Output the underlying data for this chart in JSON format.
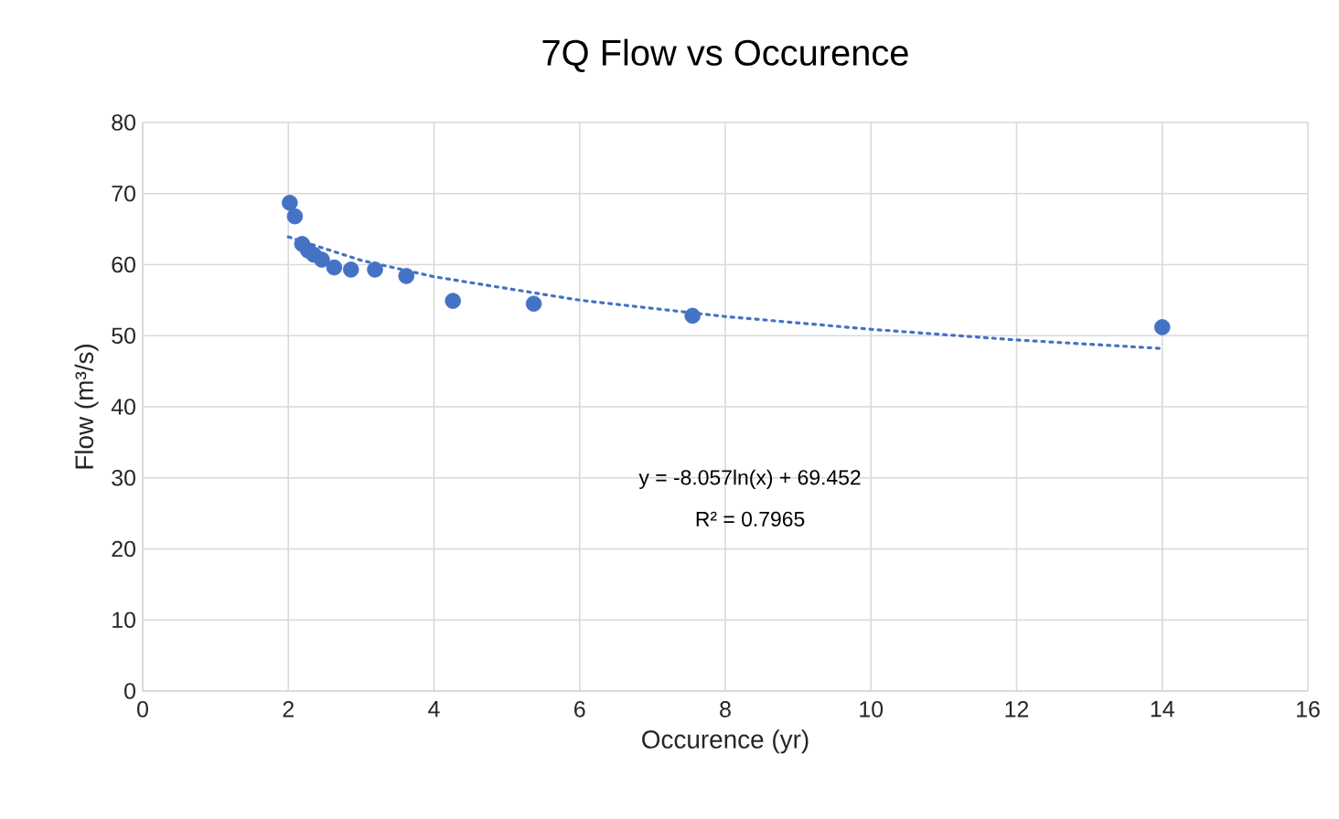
{
  "chart_data": {
    "type": "scatter",
    "title": "7Q Flow vs Occurence",
    "xlabel": "Occurence (yr)",
    "ylabel": "Flow (m³/s)",
    "xlim": [
      0,
      16
    ],
    "ylim": [
      0,
      80
    ],
    "xticks": [
      0,
      2,
      4,
      6,
      8,
      10,
      12,
      14,
      16
    ],
    "yticks": [
      0,
      10,
      20,
      30,
      40,
      50,
      60,
      70,
      80
    ],
    "grid": true,
    "annotations": [
      "y = -8.057ln(x) + 69.452",
      "R² = 0.7965"
    ],
    "series": [
      {
        "color": "#4472c4",
        "marker": "circle",
        "x": [
          2.02,
          2.09,
          2.19,
          2.27,
          2.35,
          2.46,
          2.63,
          2.86,
          3.19,
          3.62,
          4.26,
          5.37,
          7.55,
          14.0
        ],
        "values": [
          68.7,
          66.8,
          62.9,
          62.0,
          61.4,
          60.7,
          59.6,
          59.3,
          59.3,
          58.4,
          54.9,
          54.5,
          52.8,
          51.2
        ]
      },
      {
        "type": "line",
        "color": "#4472c4",
        "marker": "none",
        "line_style": "dotted",
        "x": [
          2,
          3,
          4,
          6,
          8,
          10,
          12,
          14
        ],
        "values": [
          63.9,
          60.6,
          58.3,
          55.0,
          52.7,
          50.9,
          49.4,
          48.2
        ]
      }
    ]
  }
}
